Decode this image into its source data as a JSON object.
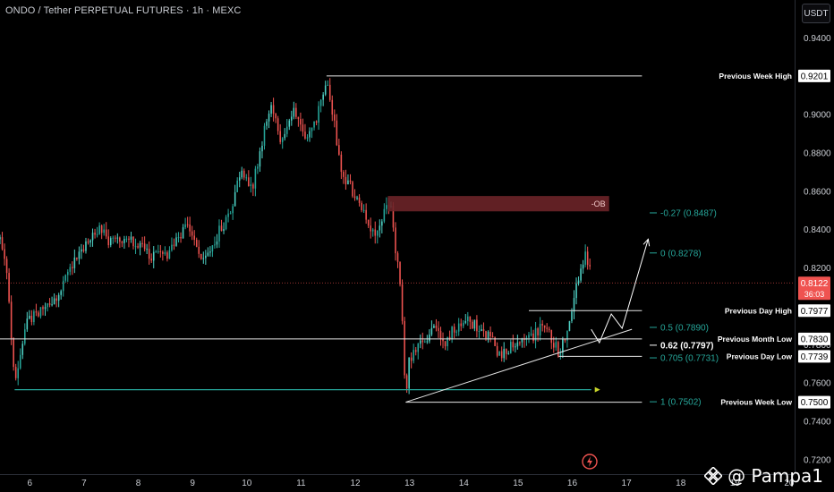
{
  "header": {
    "title": "ONDO / Tether PERPETUAL FUTURES · 1h · MEXC",
    "currency_button": "USDT"
  },
  "watermark": {
    "text": "@ Pampa1"
  },
  "colors": {
    "background": "#000000",
    "bull": "#26a69a",
    "bull_bright": "#4fd1c5",
    "bear": "#ef5350",
    "white_line": "#e6e6e6",
    "ob_zone": "#6b2428",
    "fib": "#26a69a",
    "current_price": "#ef5350"
  },
  "chart_data": {
    "type": "candlestick",
    "title": "ONDO / Tether PERPETUAL FUTURES · 1h · MEXC",
    "y_axis": {
      "ticks": [
        "0.9400",
        "0.9000",
        "0.8800",
        "0.8600",
        "0.8400",
        "0.8200",
        "0.7800",
        "0.7600",
        "0.7400",
        "0.7200"
      ],
      "range": [
        0.71,
        0.95
      ]
    },
    "x_axis": {
      "ticks": [
        "6",
        "7",
        "8",
        "9",
        "10",
        "11",
        "12",
        "13",
        "14",
        "15",
        "16",
        "17",
        "18",
        "19",
        "20"
      ],
      "range": [
        5.45,
        20.1
      ]
    },
    "price_path": [
      [
        5.45,
        0.835
      ],
      [
        5.6,
        0.812
      ],
      [
        5.72,
        0.757
      ],
      [
        5.78,
        0.768
      ],
      [
        5.92,
        0.79
      ],
      [
        6.1,
        0.797
      ],
      [
        6.3,
        0.8
      ],
      [
        6.5,
        0.802
      ],
      [
        6.6,
        0.81
      ],
      [
        6.9,
        0.828
      ],
      [
        7.1,
        0.835
      ],
      [
        7.3,
        0.842
      ],
      [
        7.5,
        0.832
      ],
      [
        7.7,
        0.836
      ],
      [
        7.9,
        0.833
      ],
      [
        8.1,
        0.829
      ],
      [
        8.3,
        0.826
      ],
      [
        8.5,
        0.826
      ],
      [
        8.7,
        0.835
      ],
      [
        8.9,
        0.842
      ],
      [
        9.1,
        0.831
      ],
      [
        9.2,
        0.822
      ],
      [
        9.4,
        0.834
      ],
      [
        9.7,
        0.85
      ],
      [
        9.9,
        0.873
      ],
      [
        10.1,
        0.862
      ],
      [
        10.3,
        0.889
      ],
      [
        10.45,
        0.905
      ],
      [
        10.6,
        0.887
      ],
      [
        10.75,
        0.896
      ],
      [
        10.9,
        0.902
      ],
      [
        11.05,
        0.89
      ],
      [
        11.2,
        0.893
      ],
      [
        11.35,
        0.903
      ],
      [
        11.47,
        0.919
      ],
      [
        11.6,
        0.898
      ],
      [
        11.75,
        0.868
      ],
      [
        11.9,
        0.862
      ],
      [
        12.1,
        0.852
      ],
      [
        12.25,
        0.84
      ],
      [
        12.4,
        0.836
      ],
      [
        12.55,
        0.851
      ],
      [
        12.65,
        0.853
      ],
      [
        12.72,
        0.835
      ],
      [
        12.82,
        0.812
      ],
      [
        12.88,
        0.786
      ],
      [
        12.93,
        0.752
      ],
      [
        13.0,
        0.773
      ],
      [
        13.15,
        0.778
      ],
      [
        13.3,
        0.783
      ],
      [
        13.45,
        0.79
      ],
      [
        13.6,
        0.78
      ],
      [
        13.75,
        0.786
      ],
      [
        13.9,
        0.791
      ],
      [
        14.1,
        0.792
      ],
      [
        14.3,
        0.789
      ],
      [
        14.5,
        0.783
      ],
      [
        14.65,
        0.775
      ],
      [
        14.8,
        0.777
      ],
      [
        14.95,
        0.781
      ],
      [
        15.1,
        0.784
      ],
      [
        15.3,
        0.785
      ],
      [
        15.45,
        0.789
      ],
      [
        15.6,
        0.784
      ],
      [
        15.75,
        0.776
      ],
      [
        15.85,
        0.783
      ],
      [
        15.95,
        0.79
      ],
      [
        16.05,
        0.805
      ],
      [
        16.15,
        0.822
      ],
      [
        16.25,
        0.826
      ],
      [
        16.35,
        0.815
      ]
    ],
    "current_price": {
      "value": 0.8122,
      "label": "0.8122",
      "countdown": "36:03"
    },
    "levels": [
      {
        "name": "Previous Week High",
        "value": 0.9201,
        "label": "0.9201",
        "start_x": 11.47,
        "end_x": 19.1
      },
      {
        "name": "Previous Day High",
        "value": 0.7977,
        "label": "0.7977",
        "start_x": 15.2,
        "end_x": 19.1
      },
      {
        "name": "Previous Month Low",
        "value": 0.783,
        "label": "0.7830",
        "start_x": 5.45,
        "end_x": 19.1
      },
      {
        "name": "Previous Day Low",
        "value": 0.7739,
        "label": "0.7739",
        "start_x": 15.75,
        "end_x": 19.1
      },
      {
        "name": "Previous Week Low",
        "value": 0.75,
        "label": "0.7500",
        "start_x": 12.93,
        "end_x": 19.1
      }
    ],
    "fib_levels": [
      {
        "label": "-0.27 (0.8487)",
        "value": 0.8487
      },
      {
        "label": "0 (0.8278)",
        "value": 0.8278
      },
      {
        "label": "0.5 (0.7890)",
        "value": 0.789
      },
      {
        "label": "0.62 (0.7797)",
        "value": 0.7797
      },
      {
        "label": "0.705 (0.7731)",
        "value": 0.7731
      },
      {
        "label": "1 (0.7502)",
        "value": 0.7502
      }
    ],
    "ob_zone": {
      "label": "-OB",
      "start_x": 12.6,
      "end_x": 16.68,
      "top": 0.8575,
      "bottom": 0.8495
    },
    "support_line": {
      "start": [
        5.72,
        0.7565
      ],
      "end": [
        16.35,
        0.7565
      ]
    },
    "trend_line": {
      "start": [
        12.93,
        0.75
      ],
      "end": [
        17.1,
        0.788
      ]
    },
    "projection_path": [
      [
        16.35,
        0.788
      ],
      [
        16.5,
        0.781
      ],
      [
        16.72,
        0.796
      ],
      [
        16.92,
        0.7885
      ],
      [
        17.4,
        0.835
      ]
    ]
  }
}
